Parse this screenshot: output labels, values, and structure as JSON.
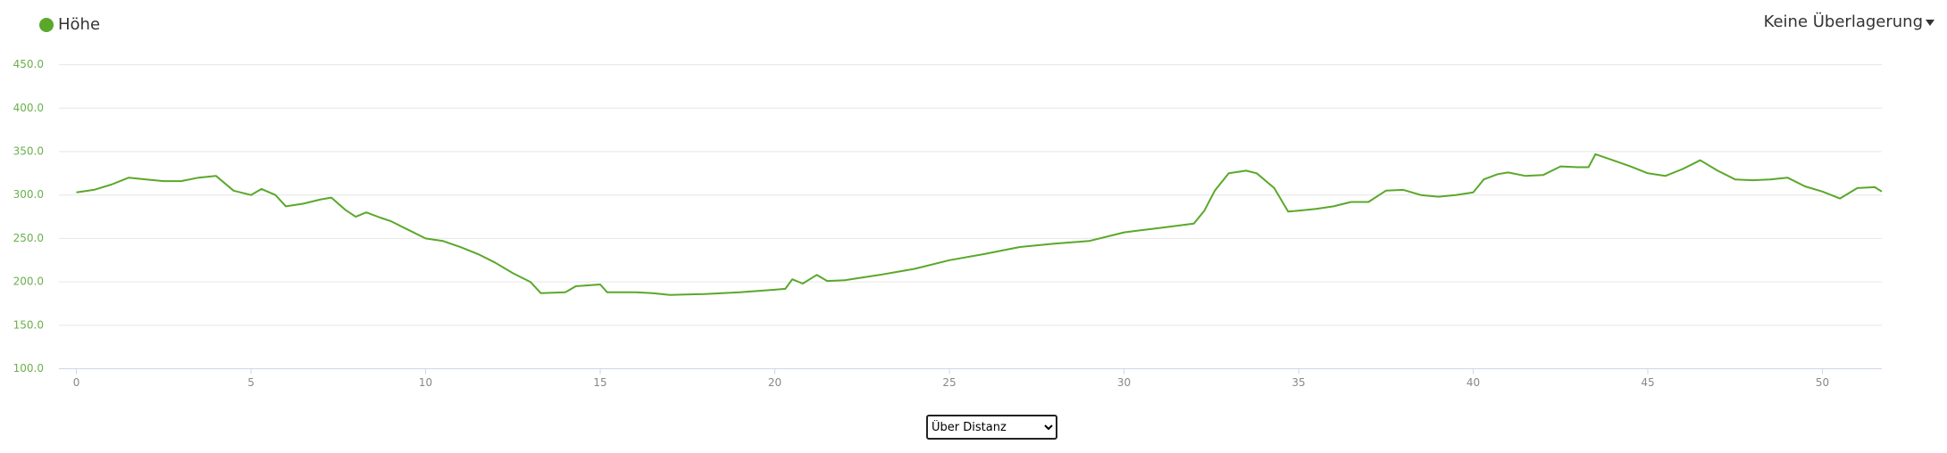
{
  "chart_data": {
    "type": "line",
    "x": [
      0,
      0.5,
      1,
      1.5,
      2,
      2.5,
      3,
      3.5,
      4,
      4.5,
      5,
      5.3,
      5.7,
      6,
      6.5,
      7,
      7.3,
      7.7,
      8,
      8.3,
      8.7,
      9,
      9.5,
      10,
      10.5,
      11,
      11.5,
      12,
      12.5,
      13,
      13.3,
      14,
      14.3,
      15,
      15.2,
      16,
      16.5,
      17,
      18,
      19,
      20,
      20.3,
      20.5,
      20.8,
      21.2,
      21.5,
      22,
      23,
      24,
      25,
      26,
      27,
      28,
      29,
      30,
      31,
      32,
      32.3,
      32.6,
      33,
      33.5,
      33.8,
      34.3,
      34.7,
      35,
      35.5,
      36,
      36.5,
      37,
      37.5,
      38,
      38.5,
      39,
      39.5,
      40,
      40.3,
      40.7,
      41,
      41.5,
      42,
      42.5,
      43,
      43.3,
      43.5,
      44,
      44.5,
      45,
      45.5,
      46,
      46.5,
      47,
      47.5,
      48,
      48.5,
      49,
      49.5,
      50,
      50.5,
      51,
      51.5,
      51.7
    ],
    "series": [
      {
        "name": "Höhe",
        "color": "#5aa82a",
        "values": [
          303,
          306,
          312,
          320,
          318,
          316,
          316,
          320,
          322,
          305,
          300,
          307,
          300,
          287,
          290,
          295,
          297,
          283,
          275,
          280,
          274,
          270,
          260,
          250,
          247,
          240,
          232,
          222,
          210,
          200,
          187,
          188,
          195,
          197,
          188,
          188,
          187,
          185,
          186,
          188,
          191,
          192,
          203,
          198,
          208,
          201,
          202,
          208,
          215,
          225,
          232,
          240,
          244,
          247,
          257,
          262,
          267,
          282,
          305,
          325,
          328,
          325,
          308,
          281,
          282,
          284,
          287,
          292,
          292,
          305,
          306,
          300,
          298,
          300,
          303,
          318,
          324,
          326,
          322,
          323,
          333,
          332,
          332,
          347,
          340,
          333,
          325,
          322,
          330,
          340,
          328,
          318,
          317,
          318,
          320,
          310,
          304,
          296,
          308,
          309,
          304
        ]
      }
    ],
    "xlim": [
      -0.5,
      51.7
    ],
    "ylim": [
      100,
      450
    ],
    "xticks": [
      0,
      5,
      10,
      15,
      20,
      25,
      30,
      35,
      40,
      45,
      50
    ],
    "yticks": [
      {
        "value": 100,
        "label": "100.0"
      },
      {
        "value": 150,
        "label": "150.0"
      },
      {
        "value": 200,
        "label": "200.0"
      },
      {
        "value": 250,
        "label": "250.0"
      },
      {
        "value": 300,
        "label": "300.0"
      },
      {
        "value": 350,
        "label": "350.0"
      },
      {
        "value": 400,
        "label": "400.0"
      },
      {
        "value": 450,
        "label": "450.0"
      }
    ],
    "grid": true
  },
  "overlay_menu": "Keine Überlagerung",
  "axis_select": "Über Distanz"
}
